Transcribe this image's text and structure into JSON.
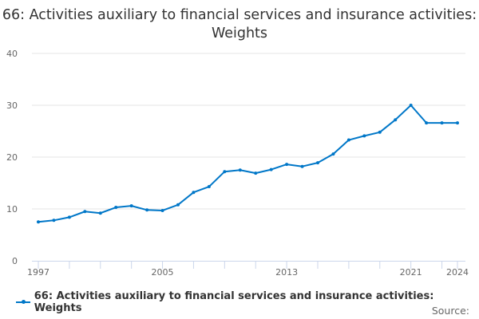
{
  "chart_data": {
    "type": "line",
    "title": "66: Activities auxiliary to financial services and insurance activities: Weights",
    "xlabel": "",
    "ylabel": "",
    "x": [
      1997,
      1998,
      1999,
      2000,
      2001,
      2002,
      2003,
      2004,
      2005,
      2006,
      2007,
      2008,
      2009,
      2010,
      2011,
      2012,
      2013,
      2014,
      2015,
      2016,
      2017,
      2018,
      2019,
      2020,
      2021,
      2022,
      2023,
      2024
    ],
    "series": [
      {
        "name": "66: Activities auxiliary to financial services and insurance activities: Weights",
        "color": "#0077c8",
        "values": [
          7.5,
          7.8,
          8.4,
          9.5,
          9.2,
          10.3,
          10.6,
          9.8,
          9.7,
          10.8,
          13.2,
          14.3,
          17.2,
          17.5,
          16.9,
          17.6,
          18.6,
          18.2,
          18.9,
          20.6,
          23.3,
          24.1,
          24.8,
          27.2,
          30.0,
          26.6,
          26.6,
          26.6
        ]
      }
    ],
    "ylim": [
      0,
      40
    ],
    "yticks": [
      "0",
      "10",
      "20",
      "30",
      "40"
    ],
    "xtick_labels": [
      "1997",
      "2005",
      "2013",
      "2021",
      "2024"
    ],
    "grid": true,
    "legend": "bottom-left"
  },
  "source_label": "Source:"
}
